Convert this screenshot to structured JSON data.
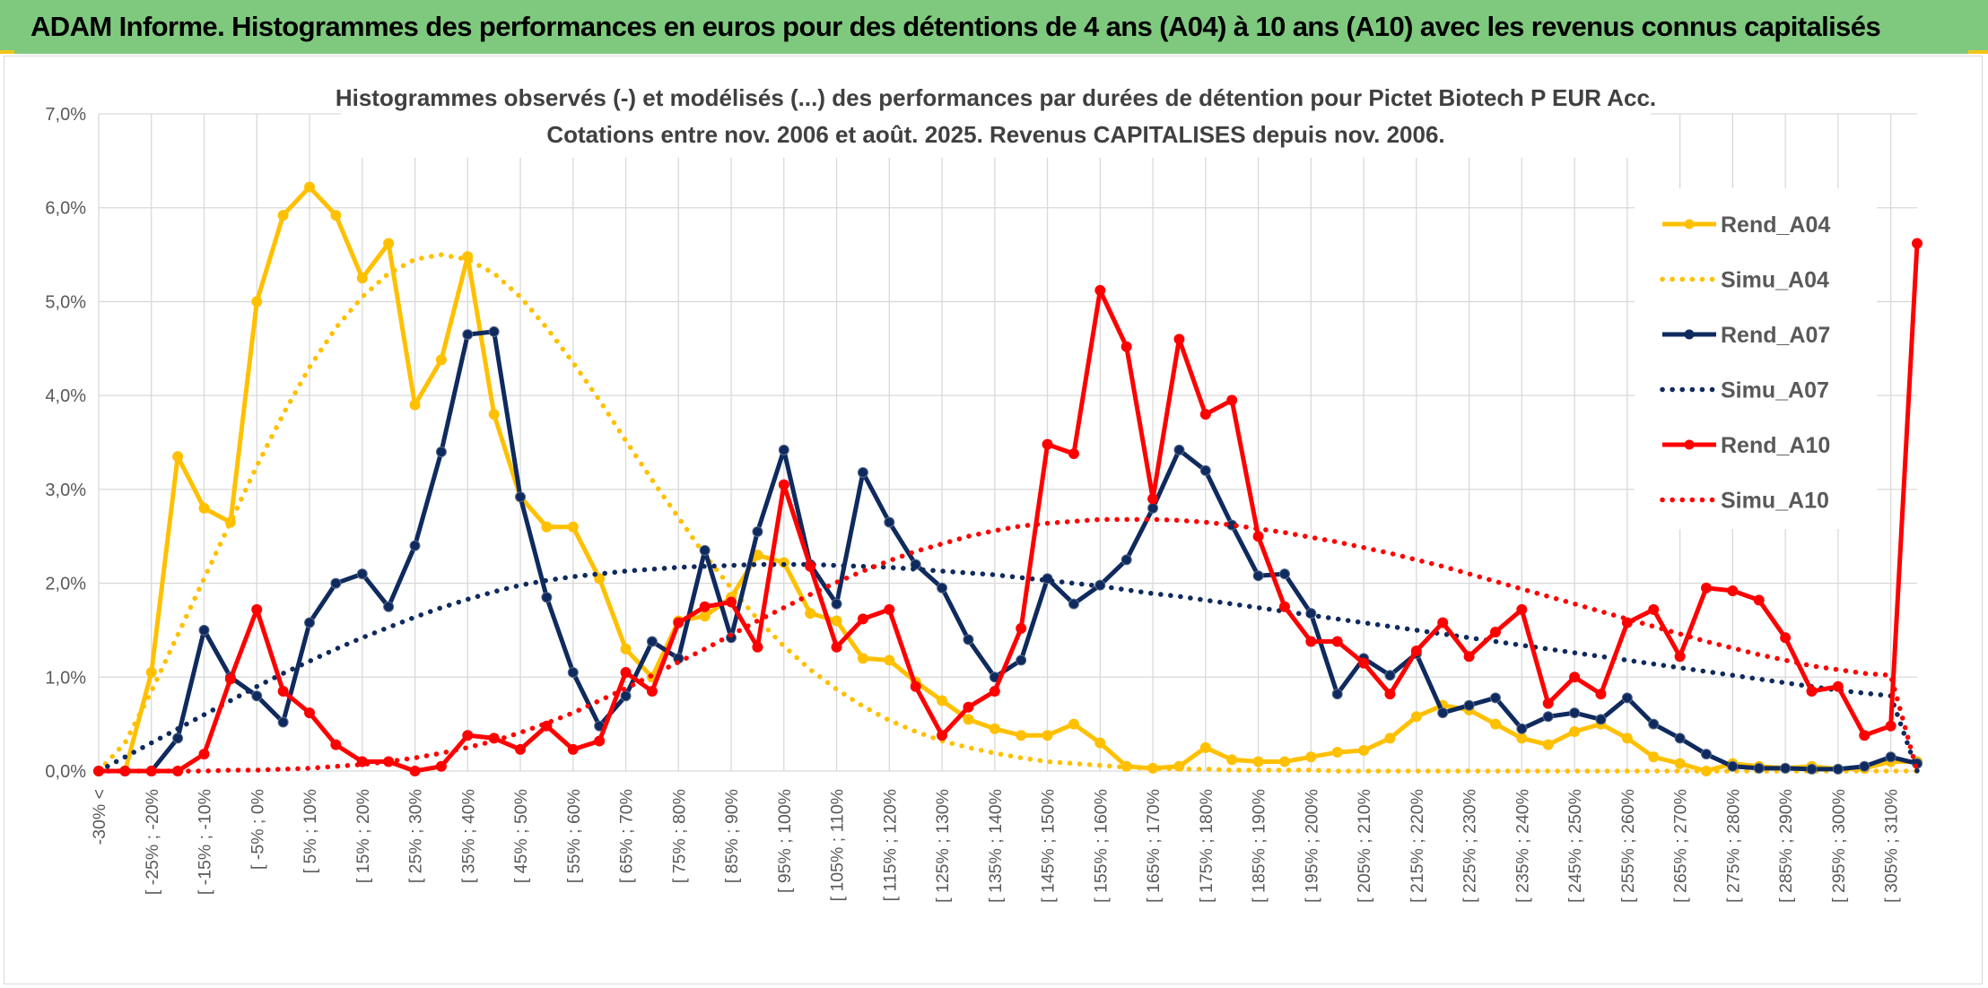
{
  "page": {
    "banner_title": "ADAM Informe. Histogrammes des performances en euros pour des détentions de 4 ans (A04) à 10 ans (A10) avec les revenus connus capitalisés"
  },
  "colors": {
    "banner_bg": "#7fc97f",
    "accent": "#f2c418",
    "A04": "#ffc000",
    "A07": "#0f2a5e",
    "A10": "#ff0000"
  },
  "chart_data": {
    "type": "line",
    "title": "Histogrammes observés (-) et modélisés (...) des performances par durées de détention pour Pictet Biotech P EUR Acc.",
    "subtitle": "Cotations entre nov. 2006 et août. 2025. Revenus CAPITALISES depuis nov. 2006.",
    "ylim": [
      0,
      7
    ],
    "y_ticks": [
      "0,0%",
      "1,0%",
      "2,0%",
      "3,0%",
      "4,0%",
      "5,0%",
      "6,0%",
      "7,0%"
    ],
    "x_tick_labels": [
      "-30% <",
      "[ -25% ; -20%",
      "[ -15% ; -10%",
      "[ -5% ; 0%",
      "[ 5% ; 10%",
      "[ 15% ; 20%",
      "[ 25% ; 30%",
      "[ 35% ; 40%",
      "[ 45% ; 50%",
      "[ 55% ; 60%",
      "[ 65% ; 70%",
      "[ 75% ; 80%",
      "[ 85% ; 90%",
      "[ 95% ; 100%",
      "[ 105% ; 110%",
      "[ 115% ; 120%",
      "[ 125% ; 130%",
      "[ 135% ; 140%",
      "[ 145% ; 150%",
      "[ 155% ; 160%",
      "[ 165% ; 170%",
      "[ 175% ; 180%",
      "[ 185% ; 190%",
      "[ 195% ; 200%",
      "[ 205% ; 210%",
      "[ 215% ; 220%",
      "[ 225% ; 230%",
      "[ 235% ; 240%",
      "[ 245% ; 250%",
      "[ 255% ; 260%",
      "[ 265% ; 270%",
      "[ 275% ; 280%",
      "[ 285% ; 290%",
      "[ 295% ; 300%",
      "[ 305% ; 310%"
    ],
    "n_categories": 70,
    "grid": true,
    "legend_position": "right",
    "series": [
      {
        "name": "Rend_A04",
        "style": "solid",
        "color": "#ffc000",
        "values": [
          0.0,
          0.0,
          1.05,
          3.35,
          2.8,
          2.65,
          5.0,
          5.92,
          6.22,
          5.92,
          5.25,
          5.62,
          3.9,
          4.38,
          5.48,
          3.8,
          2.92,
          2.6,
          2.6,
          2.05,
          1.3,
          1.0,
          1.6,
          1.65,
          1.85,
          2.3,
          2.22,
          1.68,
          1.6,
          1.2,
          1.18,
          0.95,
          0.75,
          0.55,
          0.45,
          0.38,
          0.38,
          0.5,
          0.3,
          0.05,
          0.03,
          0.05,
          0.25,
          0.12,
          0.1,
          0.1,
          0.15,
          0.2,
          0.22,
          0.35,
          0.58,
          0.7,
          0.65,
          0.5,
          0.35,
          0.28,
          0.42,
          0.5,
          0.35,
          0.15,
          0.08,
          0.0,
          0.08,
          0.05,
          0.03,
          0.05,
          0.02,
          0.03,
          0.1,
          0.1
        ]
      },
      {
        "name": "Simu_A04",
        "style": "dotted",
        "color": "#ffc000",
        "values": [
          0.0,
          0.3,
          0.85,
          1.45,
          2.05,
          2.65,
          3.25,
          3.8,
          4.3,
          4.72,
          5.05,
          5.3,
          5.45,
          5.5,
          5.45,
          5.3,
          5.05,
          4.72,
          4.35,
          3.95,
          3.52,
          3.1,
          2.7,
          2.3,
          1.95,
          1.62,
          1.33,
          1.08,
          0.87,
          0.69,
          0.54,
          0.42,
          0.32,
          0.25,
          0.19,
          0.14,
          0.1,
          0.08,
          0.06,
          0.04,
          0.03,
          0.02,
          0.02,
          0.01,
          0.01,
          0.01,
          0.01,
          0.0,
          0.0,
          0.0,
          0.0,
          0.0,
          0.0,
          0.0,
          0.0,
          0.0,
          0.0,
          0.0,
          0.0,
          0.0,
          0.0,
          0.0,
          0.0,
          0.0,
          0.0,
          0.0,
          0.0,
          0.0,
          0.0,
          0.0
        ]
      },
      {
        "name": "Rend_A07",
        "style": "solid",
        "color": "#0f2a5e",
        "values": [
          0.0,
          0.0,
          0.0,
          0.35,
          1.5,
          1.0,
          0.8,
          0.52,
          1.58,
          2.0,
          2.1,
          1.75,
          2.4,
          3.4,
          4.65,
          4.68,
          2.92,
          1.85,
          1.05,
          0.48,
          0.8,
          1.38,
          1.2,
          2.35,
          1.42,
          2.55,
          3.42,
          2.2,
          1.78,
          3.18,
          2.65,
          2.2,
          1.95,
          1.4,
          1.0,
          1.18,
          2.05,
          1.78,
          1.98,
          2.25,
          2.8,
          3.42,
          3.2,
          2.62,
          2.08,
          2.1,
          1.68,
          0.82,
          1.2,
          1.02,
          1.25,
          0.62,
          0.7,
          0.78,
          0.45,
          0.58,
          0.62,
          0.55,
          0.78,
          0.5,
          0.35,
          0.18,
          0.05,
          0.03,
          0.03,
          0.02,
          0.02,
          0.05,
          0.15,
          0.08
        ]
      },
      {
        "name": "Simu_A07",
        "style": "dotted",
        "color": "#0f2a5e",
        "values": [
          0.0,
          0.15,
          0.3,
          0.45,
          0.6,
          0.75,
          0.9,
          1.04,
          1.17,
          1.3,
          1.42,
          1.53,
          1.64,
          1.74,
          1.83,
          1.91,
          1.98,
          2.03,
          2.07,
          2.1,
          2.13,
          2.15,
          2.17,
          2.18,
          2.19,
          2.2,
          2.2,
          2.2,
          2.19,
          2.18,
          2.17,
          2.15,
          2.13,
          2.11,
          2.09,
          2.06,
          2.03,
          2.0,
          1.97,
          1.93,
          1.89,
          1.86,
          1.82,
          1.78,
          1.74,
          1.7,
          1.66,
          1.62,
          1.58,
          1.54,
          1.5,
          1.46,
          1.42,
          1.38,
          1.34,
          1.3,
          1.26,
          1.22,
          1.18,
          1.14,
          1.1,
          1.06,
          1.02,
          0.98,
          0.94,
          0.9,
          0.86,
          0.83,
          0.8,
          0.0
        ]
      },
      {
        "name": "Rend_A10",
        "style": "solid",
        "color": "#ff0000",
        "values": [
          0.0,
          0.0,
          0.0,
          0.0,
          0.18,
          0.98,
          1.72,
          0.85,
          0.62,
          0.28,
          0.1,
          0.1,
          0.0,
          0.05,
          0.38,
          0.35,
          0.23,
          0.48,
          0.23,
          0.32,
          1.05,
          0.85,
          1.58,
          1.75,
          1.8,
          1.32,
          3.05,
          2.18,
          1.32,
          1.62,
          1.72,
          0.9,
          0.38,
          0.68,
          0.85,
          1.52,
          3.48,
          3.38,
          5.12,
          4.52,
          2.9,
          4.6,
          3.8,
          3.95,
          2.5,
          1.75,
          1.38,
          1.38,
          1.15,
          0.82,
          1.28,
          1.58,
          1.22,
          1.48,
          1.72,
          0.72,
          1.0,
          0.82,
          1.58,
          1.72,
          1.22,
          1.95,
          1.92,
          1.82,
          1.42,
          0.85,
          0.9,
          0.38,
          0.48,
          5.62
        ]
      },
      {
        "name": "Simu_A10",
        "style": "dotted",
        "color": "#ff0000",
        "values": [
          0.0,
          0.0,
          0.0,
          0.0,
          0.0,
          0.01,
          0.01,
          0.02,
          0.03,
          0.05,
          0.07,
          0.1,
          0.14,
          0.19,
          0.25,
          0.32,
          0.41,
          0.51,
          0.62,
          0.75,
          0.88,
          1.02,
          1.16,
          1.3,
          1.45,
          1.6,
          1.74,
          1.88,
          2.01,
          2.13,
          2.24,
          2.34,
          2.42,
          2.5,
          2.56,
          2.61,
          2.64,
          2.66,
          2.68,
          2.68,
          2.68,
          2.67,
          2.65,
          2.62,
          2.58,
          2.54,
          2.49,
          2.44,
          2.38,
          2.32,
          2.25,
          2.18,
          2.1,
          2.02,
          1.94,
          1.86,
          1.78,
          1.7,
          1.62,
          1.54,
          1.46,
          1.38,
          1.31,
          1.24,
          1.18,
          1.12,
          1.08,
          1.04,
          1.02,
          0.0
        ]
      }
    ]
  }
}
